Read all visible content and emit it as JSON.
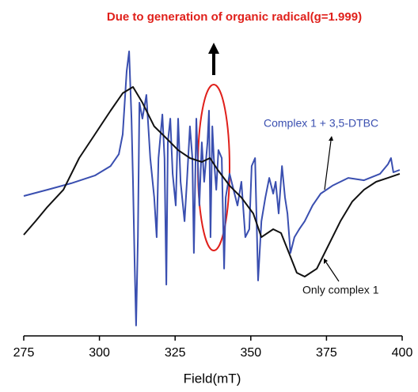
{
  "chart_data": {
    "type": "line",
    "title": "Due to generation of organic radical(g=1.999)",
    "x_label": "Field(mT)",
    "xlim": [
      275,
      400
    ],
    "xticks": [
      275,
      300,
      325,
      350,
      375,
      400
    ],
    "ylim": [
      0,
      100
    ],
    "series": [
      {
        "name": "Complex 1 + 3,5-DTBC",
        "color": "#3a4fb0",
        "x": [
          275.0,
          282.8,
          290.7,
          298.5,
          303.7,
          306.4,
          307.7,
          309.0,
          309.8,
          310.6,
          311.1,
          311.6,
          312.1,
          312.7,
          313.2,
          314.2,
          315.5,
          316.8,
          318.1,
          318.9,
          319.5,
          320.8,
          321.5,
          322.1,
          322.6,
          323.4,
          324.2,
          325.2,
          326.0,
          326.8,
          328.1,
          328.9,
          329.9,
          330.7,
          331.2,
          332.0,
          333.0,
          333.8,
          334.6,
          335.7,
          336.2,
          336.7,
          337.3,
          337.8,
          338.6,
          339.3,
          340.4,
          341.2,
          341.7,
          343.0,
          344.3,
          345.6,
          346.9,
          348.2,
          349.5,
          350.3,
          351.4,
          352.4,
          353.5,
          354.8,
          356.1,
          357.4,
          358.2,
          359.2,
          360.3,
          361.3,
          362.1,
          363.1,
          364.4,
          366.0,
          367.8,
          370.4,
          373.1,
          377.0,
          382.2,
          387.4,
          392.7,
          395.3,
          396.3,
          397.1,
          399.2
        ],
        "values": [
          47.2,
          49.3,
          51.5,
          54.1,
          57.3,
          61.3,
          68.0,
          89.3,
          96.0,
          73.3,
          52.0,
          25.3,
          3.5,
          33.3,
          78.7,
          73.3,
          81.3,
          60.0,
          46.7,
          33.3,
          60.0,
          74.7,
          60.0,
          17.3,
          65.3,
          73.3,
          54.7,
          44.0,
          73.3,
          52.0,
          38.7,
          52.0,
          70.7,
          60.0,
          28.0,
          73.3,
          44.0,
          65.3,
          52.0,
          65.3,
          76.0,
          33.3,
          70.7,
          60.0,
          49.3,
          62.7,
          60.0,
          22.7,
          46.7,
          54.7,
          49.3,
          44.0,
          52.0,
          33.3,
          36.0,
          57.3,
          60.0,
          18.7,
          38.7,
          46.7,
          53.3,
          48.0,
          52.0,
          41.3,
          57.3,
          46.7,
          41.3,
          28.0,
          33.3,
          36.0,
          38.7,
          44.0,
          48.0,
          50.7,
          53.3,
          52.5,
          54.7,
          57.9,
          60.0,
          55.2,
          56.0
        ]
      },
      {
        "name": "Only complex 1",
        "color": "#111111",
        "x": [
          275.0,
          278.9,
          282.8,
          288.1,
          293.3,
          298.5,
          303.7,
          307.7,
          311.1,
          314.2,
          318.1,
          322.1,
          326.0,
          329.9,
          333.8,
          336.5,
          339.1,
          343.0,
          346.9,
          350.8,
          353.5,
          357.4,
          360.0,
          362.6,
          365.2,
          367.8,
          371.8,
          374.4,
          377.0,
          379.6,
          383.5,
          387.4,
          391.4,
          395.3,
          399.2
        ],
        "values": [
          34.1,
          38.7,
          43.5,
          49.3,
          60.0,
          68.0,
          76.0,
          81.9,
          84.0,
          78.7,
          70.7,
          66.7,
          62.7,
          60.0,
          58.7,
          60.0,
          56.0,
          50.7,
          46.7,
          41.3,
          33.3,
          36.0,
          34.7,
          28.0,
          21.3,
          20.0,
          22.7,
          28.0,
          33.3,
          38.7,
          45.3,
          49.3,
          52.0,
          53.3,
          54.7
        ]
      }
    ]
  }
}
